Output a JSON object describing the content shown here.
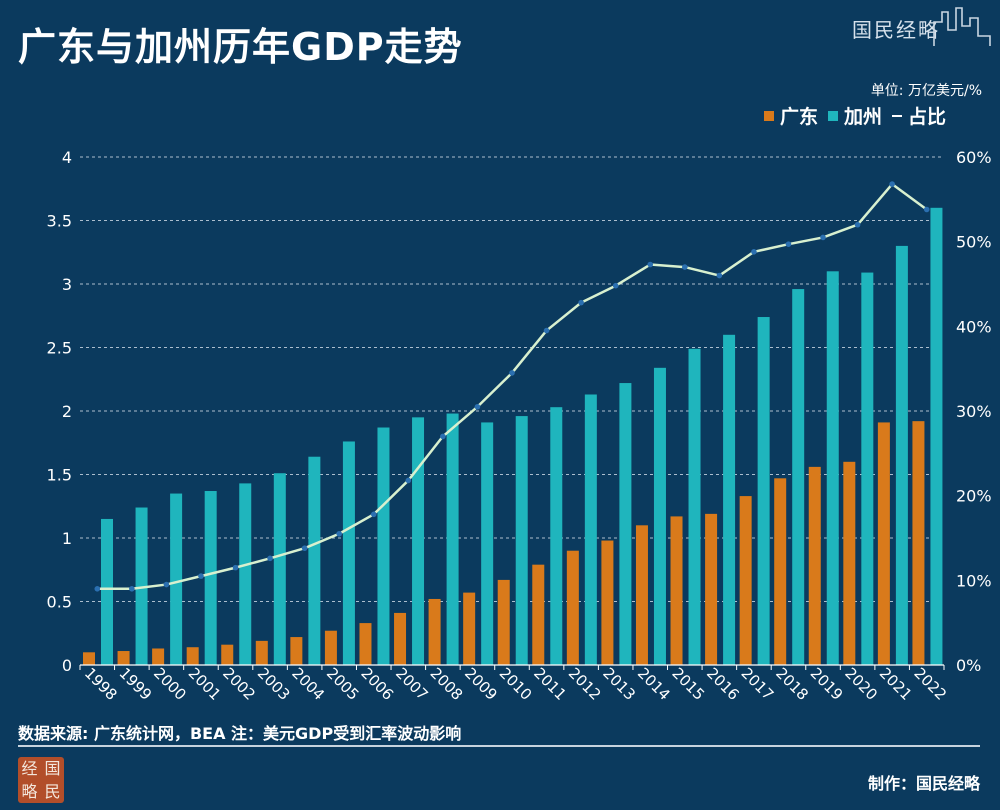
{
  "header": {
    "title": "广东与加州历年GDP走势",
    "brand": "国民经略"
  },
  "unit_label": "单位: 万亿美元/%",
  "legend": {
    "guangdong": "广东",
    "california": "加州",
    "ratio": "占比"
  },
  "colors": {
    "background": "#0b3a5e",
    "guangdong": "#d97a1b",
    "california": "#1fb5bd",
    "ratio_line": "#d8f0cf",
    "ratio_marker": "#2b6fb0",
    "grid": "#c9d6e2"
  },
  "footer": {
    "source": "数据来源: 广东统计网，BEA  注：美元GDP受到汇率波动影响",
    "credit": "制作：国民经略",
    "logo_chars": [
      "经",
      "国",
      "略",
      "民"
    ]
  },
  "chart_data": {
    "type": "bar",
    "categories": [
      "1998",
      "1999",
      "2000",
      "2001",
      "2002",
      "2003",
      "2004",
      "2005",
      "2006",
      "2007",
      "2008",
      "2009",
      "2010",
      "2011",
      "2012",
      "2013",
      "2014",
      "2015",
      "2016",
      "2017",
      "2018",
      "2019",
      "2020",
      "2021",
      "2022"
    ],
    "series": [
      {
        "name": "广东",
        "type": "bar",
        "axis": "left",
        "color": "#d97a1b",
        "values": [
          0.1,
          0.11,
          0.13,
          0.14,
          0.16,
          0.19,
          0.22,
          0.27,
          0.33,
          0.41,
          0.52,
          0.57,
          0.67,
          0.79,
          0.9,
          0.98,
          1.1,
          1.17,
          1.19,
          1.33,
          1.47,
          1.56,
          1.6,
          1.91,
          1.92
        ]
      },
      {
        "name": "加州",
        "type": "bar",
        "axis": "right_bar",
        "color": "#1fb5bd",
        "values": [
          1.15,
          1.24,
          1.35,
          1.37,
          1.43,
          1.51,
          1.64,
          1.76,
          1.87,
          1.95,
          1.98,
          1.91,
          1.96,
          2.03,
          2.13,
          2.22,
          2.34,
          2.49,
          2.6,
          2.74,
          2.96,
          3.1,
          3.09,
          3.3,
          3.6
        ]
      },
      {
        "name": "占比",
        "type": "line",
        "axis": "right",
        "color": "#d8f0cf",
        "values": [
          9.0,
          9.0,
          9.5,
          10.5,
          11.5,
          12.6,
          13.8,
          15.5,
          17.8,
          21.8,
          27.0,
          30.5,
          34.5,
          39.5,
          42.8,
          44.8,
          47.3,
          47.0,
          46.0,
          48.8,
          49.7,
          50.5,
          52.0,
          56.8,
          53.8
        ]
      }
    ],
    "y_left": {
      "ticks": [
        "0",
        "0.5",
        "1",
        "1.5",
        "2",
        "2.5",
        "3",
        "3.5",
        "4"
      ],
      "min": 0,
      "max": 4
    },
    "y_right": {
      "ticks": [
        "0%",
        "10%",
        "20%",
        "30%",
        "40%",
        "50%",
        "60%"
      ],
      "min": 0,
      "max": 60
    },
    "grid": true,
    "legend_position": "top-right"
  }
}
